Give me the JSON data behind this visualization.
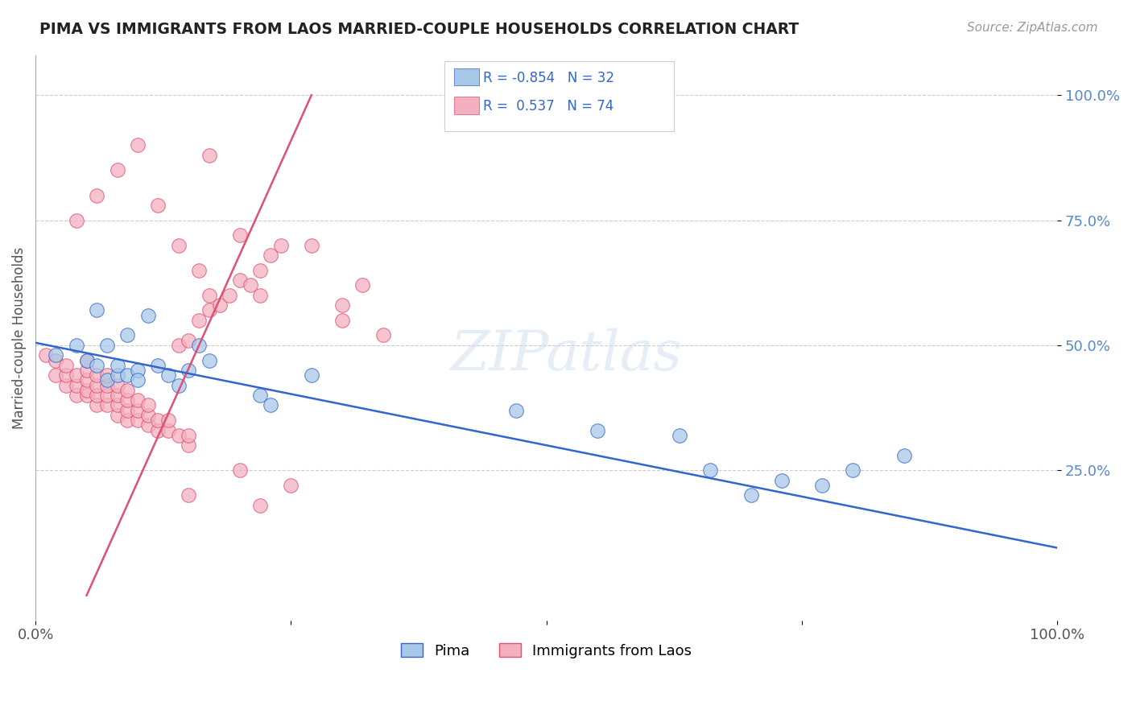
{
  "title": "PIMA VS IMMIGRANTS FROM LAOS MARRIED-COUPLE HOUSEHOLDS CORRELATION CHART",
  "source": "Source: ZipAtlas.com",
  "ylabel": "Married-couple Households",
  "legend_blue": {
    "R": "-0.854",
    "N": "32",
    "label": "Pima"
  },
  "legend_pink": {
    "R": "0.537",
    "N": "74",
    "label": "Immigrants from Laos"
  },
  "ytick_values": [
    1.0,
    0.75,
    0.5,
    0.25
  ],
  "xlim": [
    0.0,
    1.0
  ],
  "ylim": [
    -0.05,
    1.08
  ],
  "background_color": "#ffffff",
  "grid_color": "#cccccc",
  "blue_color": "#a8c8e8",
  "pink_color": "#f4b0c0",
  "blue_line_color": "#3366cc",
  "pink_line_color": "#e05070",
  "pima_x": [
    0.02,
    0.04,
    0.05,
    0.06,
    0.06,
    0.07,
    0.07,
    0.08,
    0.08,
    0.09,
    0.09,
    0.1,
    0.1,
    0.11,
    0.12,
    0.13,
    0.14,
    0.15,
    0.16,
    0.17,
    0.22,
    0.23,
    0.27,
    0.47,
    0.55,
    0.63,
    0.66,
    0.7,
    0.73,
    0.77,
    0.8,
    0.85
  ],
  "pima_y": [
    0.48,
    0.5,
    0.47,
    0.46,
    0.57,
    0.43,
    0.5,
    0.44,
    0.46,
    0.44,
    0.52,
    0.45,
    0.43,
    0.56,
    0.46,
    0.44,
    0.42,
    0.45,
    0.5,
    0.47,
    0.4,
    0.38,
    0.44,
    0.37,
    0.33,
    0.32,
    0.25,
    0.2,
    0.23,
    0.22,
    0.25,
    0.28
  ],
  "laos_x": [
    0.01,
    0.02,
    0.02,
    0.03,
    0.03,
    0.03,
    0.04,
    0.04,
    0.04,
    0.05,
    0.05,
    0.05,
    0.05,
    0.05,
    0.06,
    0.06,
    0.06,
    0.06,
    0.07,
    0.07,
    0.07,
    0.07,
    0.08,
    0.08,
    0.08,
    0.08,
    0.09,
    0.09,
    0.09,
    0.09,
    0.1,
    0.1,
    0.1,
    0.11,
    0.11,
    0.11,
    0.12,
    0.12,
    0.13,
    0.13,
    0.14,
    0.14,
    0.15,
    0.15,
    0.15,
    0.16,
    0.16,
    0.17,
    0.17,
    0.18,
    0.19,
    0.2,
    0.21,
    0.22,
    0.22,
    0.23,
    0.24,
    0.27,
    0.3,
    0.3,
    0.32,
    0.34,
    0.15,
    0.2,
    0.22,
    0.25,
    0.04,
    0.06,
    0.08,
    0.1,
    0.12,
    0.14,
    0.17,
    0.2
  ],
  "laos_y": [
    0.48,
    0.44,
    0.47,
    0.42,
    0.44,
    0.46,
    0.4,
    0.42,
    0.44,
    0.4,
    0.41,
    0.43,
    0.45,
    0.47,
    0.38,
    0.4,
    0.42,
    0.44,
    0.38,
    0.4,
    0.42,
    0.44,
    0.36,
    0.38,
    0.4,
    0.42,
    0.35,
    0.37,
    0.39,
    0.41,
    0.35,
    0.37,
    0.39,
    0.34,
    0.36,
    0.38,
    0.33,
    0.35,
    0.33,
    0.35,
    0.32,
    0.5,
    0.3,
    0.32,
    0.51,
    0.55,
    0.65,
    0.57,
    0.6,
    0.58,
    0.6,
    0.63,
    0.62,
    0.6,
    0.65,
    0.68,
    0.7,
    0.7,
    0.55,
    0.58,
    0.62,
    0.52,
    0.2,
    0.25,
    0.18,
    0.22,
    0.75,
    0.8,
    0.85,
    0.9,
    0.78,
    0.7,
    0.88,
    0.72
  ],
  "pink_line_x0": 0.05,
  "pink_line_y0": 0.0,
  "pink_line_x1": 0.27,
  "pink_line_y1": 1.0,
  "blue_line_x0": 0.0,
  "blue_line_y0": 0.505,
  "blue_line_x1": 1.0,
  "blue_line_y1": 0.095
}
